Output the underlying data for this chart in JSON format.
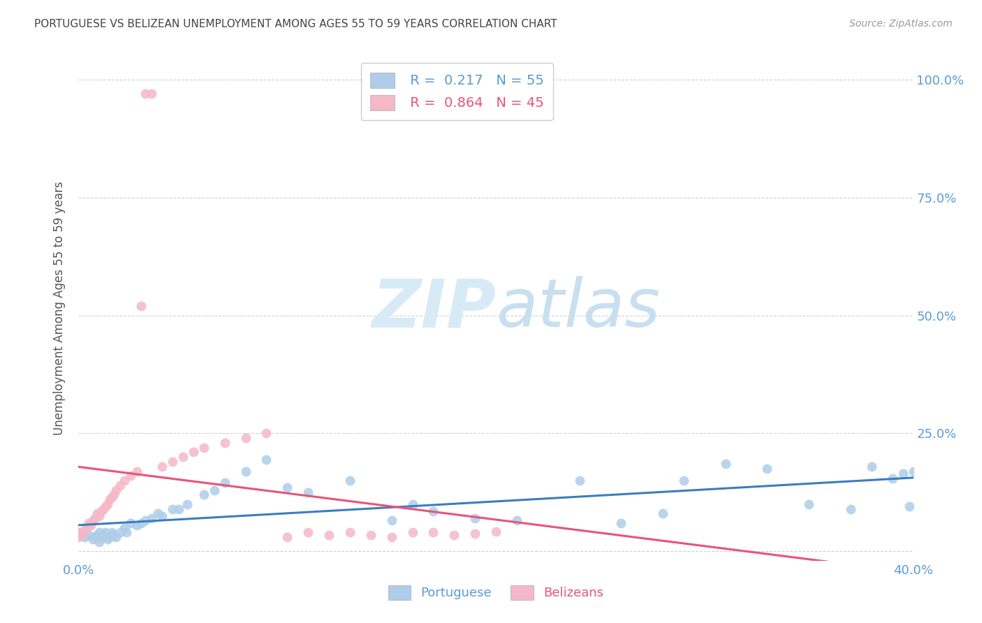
{
  "title": "PORTUGUESE VS BELIZEAN UNEMPLOYMENT AMONG AGES 55 TO 59 YEARS CORRELATION CHART",
  "source": "Source: ZipAtlas.com",
  "ylabel": "Unemployment Among Ages 55 to 59 years",
  "xlim": [
    0.0,
    0.4
  ],
  "ylim": [
    -0.02,
    1.05
  ],
  "yticks": [
    0.0,
    0.25,
    0.5,
    0.75,
    1.0
  ],
  "ytick_labels_right": [
    "",
    "25.0%",
    "50.0%",
    "75.0%",
    "100.0%"
  ],
  "xticks": [
    0.0,
    0.1,
    0.2,
    0.3,
    0.4
  ],
  "xtick_labels": [
    "0.0%",
    "",
    "",
    "",
    "40.0%"
  ],
  "portuguese_R": 0.217,
  "portuguese_N": 55,
  "belizean_R": 0.864,
  "belizean_N": 45,
  "portuguese_color": "#aecde8",
  "belizean_color": "#f4b8c8",
  "trendline_portuguese_color": "#3a7ebf",
  "trendline_belizean_color": "#e8547a",
  "portuguese_x": [
    0.0,
    0.003,
    0.005,
    0.007,
    0.008,
    0.009,
    0.01,
    0.01,
    0.011,
    0.012,
    0.013,
    0.014,
    0.015,
    0.016,
    0.017,
    0.018,
    0.02,
    0.022,
    0.023,
    0.025,
    0.028,
    0.03,
    0.032,
    0.035,
    0.038,
    0.04,
    0.045,
    0.048,
    0.052,
    0.06,
    0.065,
    0.07,
    0.08,
    0.09,
    0.1,
    0.11,
    0.13,
    0.15,
    0.16,
    0.17,
    0.19,
    0.21,
    0.24,
    0.26,
    0.28,
    0.29,
    0.31,
    0.33,
    0.35,
    0.37,
    0.38,
    0.39,
    0.395,
    0.398,
    0.4
  ],
  "portuguese_y": [
    0.04,
    0.03,
    0.035,
    0.025,
    0.03,
    0.035,
    0.02,
    0.04,
    0.03,
    0.035,
    0.04,
    0.025,
    0.03,
    0.04,
    0.035,
    0.03,
    0.04,
    0.05,
    0.04,
    0.06,
    0.055,
    0.06,
    0.065,
    0.07,
    0.08,
    0.075,
    0.09,
    0.09,
    0.1,
    0.12,
    0.13,
    0.145,
    0.17,
    0.195,
    0.135,
    0.125,
    0.15,
    0.065,
    0.1,
    0.085,
    0.07,
    0.065,
    0.15,
    0.06,
    0.08,
    0.15,
    0.185,
    0.175,
    0.1,
    0.09,
    0.18,
    0.155,
    0.165,
    0.095,
    0.17
  ],
  "belizean_x": [
    0.0,
    0.001,
    0.002,
    0.003,
    0.004,
    0.005,
    0.006,
    0.007,
    0.008,
    0.009,
    0.01,
    0.011,
    0.012,
    0.013,
    0.014,
    0.015,
    0.016,
    0.017,
    0.018,
    0.02,
    0.022,
    0.025,
    0.028,
    0.03,
    0.032,
    0.035,
    0.04,
    0.045,
    0.05,
    0.055,
    0.06,
    0.07,
    0.08,
    0.09,
    0.1,
    0.11,
    0.12,
    0.13,
    0.14,
    0.15,
    0.16,
    0.17,
    0.18,
    0.19,
    0.2
  ],
  "belizean_y": [
    0.03,
    0.04,
    0.035,
    0.045,
    0.05,
    0.06,
    0.055,
    0.065,
    0.07,
    0.08,
    0.075,
    0.085,
    0.09,
    0.095,
    0.1,
    0.11,
    0.115,
    0.12,
    0.13,
    0.14,
    0.15,
    0.16,
    0.17,
    0.52,
    0.97,
    0.97,
    0.18,
    0.19,
    0.2,
    0.21,
    0.22,
    0.23,
    0.24,
    0.25,
    0.03,
    0.04,
    0.035,
    0.04,
    0.035,
    0.03,
    0.04,
    0.04,
    0.035,
    0.038,
    0.042
  ],
  "background_color": "#ffffff",
  "grid_color": "#d0d0d0",
  "title_color": "#444444",
  "axis_label_color": "#555555",
  "tick_label_color": "#5b9bd5",
  "legend_label_color_portuguese": "#5b9bd5",
  "legend_label_color_belizean": "#e8547a",
  "watermark_color": "#d8eaf6"
}
